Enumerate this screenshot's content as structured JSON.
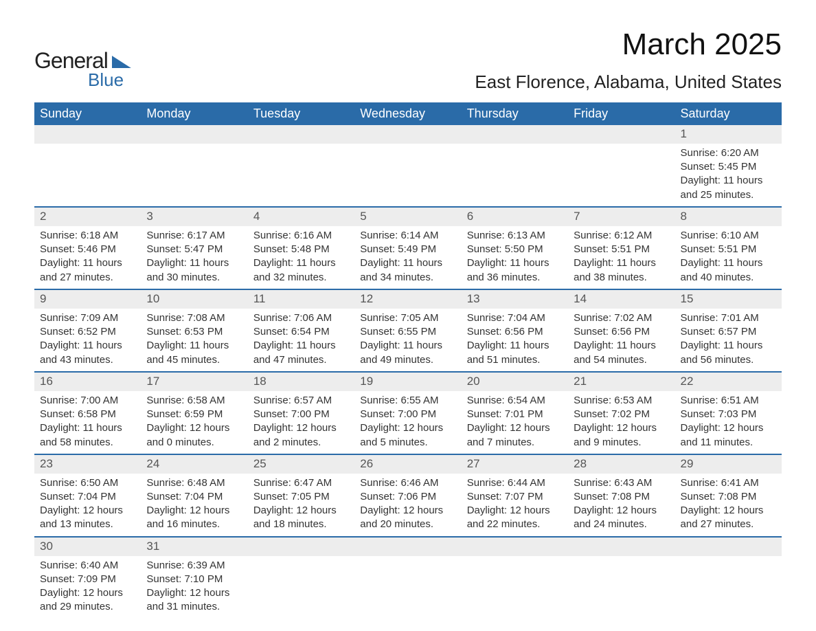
{
  "logo": {
    "text_general": "General",
    "text_blue": "Blue"
  },
  "header": {
    "month_title": "March 2025",
    "location": "East Florence, Alabama, United States"
  },
  "styling": {
    "header_bg_color": "#2a6ba8",
    "header_text_color": "#ffffff",
    "daynum_bg_color": "#ededed",
    "row_divider_color": "#2a6ba8",
    "body_text_color": "#333333",
    "month_title_fontsize": 44,
    "location_fontsize": 26,
    "weekday_fontsize": 18,
    "cell_fontsize": 15
  },
  "weekdays": [
    "Sunday",
    "Monday",
    "Tuesday",
    "Wednesday",
    "Thursday",
    "Friday",
    "Saturday"
  ],
  "weeks": [
    [
      {
        "day": "",
        "sunrise": "",
        "sunset": "",
        "daylight": ""
      },
      {
        "day": "",
        "sunrise": "",
        "sunset": "",
        "daylight": ""
      },
      {
        "day": "",
        "sunrise": "",
        "sunset": "",
        "daylight": ""
      },
      {
        "day": "",
        "sunrise": "",
        "sunset": "",
        "daylight": ""
      },
      {
        "day": "",
        "sunrise": "",
        "sunset": "",
        "daylight": ""
      },
      {
        "day": "",
        "sunrise": "",
        "sunset": "",
        "daylight": ""
      },
      {
        "day": "1",
        "sunrise": "Sunrise: 6:20 AM",
        "sunset": "Sunset: 5:45 PM",
        "daylight": "Daylight: 11 hours and 25 minutes."
      }
    ],
    [
      {
        "day": "2",
        "sunrise": "Sunrise: 6:18 AM",
        "sunset": "Sunset: 5:46 PM",
        "daylight": "Daylight: 11 hours and 27 minutes."
      },
      {
        "day": "3",
        "sunrise": "Sunrise: 6:17 AM",
        "sunset": "Sunset: 5:47 PM",
        "daylight": "Daylight: 11 hours and 30 minutes."
      },
      {
        "day": "4",
        "sunrise": "Sunrise: 6:16 AM",
        "sunset": "Sunset: 5:48 PM",
        "daylight": "Daylight: 11 hours and 32 minutes."
      },
      {
        "day": "5",
        "sunrise": "Sunrise: 6:14 AM",
        "sunset": "Sunset: 5:49 PM",
        "daylight": "Daylight: 11 hours and 34 minutes."
      },
      {
        "day": "6",
        "sunrise": "Sunrise: 6:13 AM",
        "sunset": "Sunset: 5:50 PM",
        "daylight": "Daylight: 11 hours and 36 minutes."
      },
      {
        "day": "7",
        "sunrise": "Sunrise: 6:12 AM",
        "sunset": "Sunset: 5:51 PM",
        "daylight": "Daylight: 11 hours and 38 minutes."
      },
      {
        "day": "8",
        "sunrise": "Sunrise: 6:10 AM",
        "sunset": "Sunset: 5:51 PM",
        "daylight": "Daylight: 11 hours and 40 minutes."
      }
    ],
    [
      {
        "day": "9",
        "sunrise": "Sunrise: 7:09 AM",
        "sunset": "Sunset: 6:52 PM",
        "daylight": "Daylight: 11 hours and 43 minutes."
      },
      {
        "day": "10",
        "sunrise": "Sunrise: 7:08 AM",
        "sunset": "Sunset: 6:53 PM",
        "daylight": "Daylight: 11 hours and 45 minutes."
      },
      {
        "day": "11",
        "sunrise": "Sunrise: 7:06 AM",
        "sunset": "Sunset: 6:54 PM",
        "daylight": "Daylight: 11 hours and 47 minutes."
      },
      {
        "day": "12",
        "sunrise": "Sunrise: 7:05 AM",
        "sunset": "Sunset: 6:55 PM",
        "daylight": "Daylight: 11 hours and 49 minutes."
      },
      {
        "day": "13",
        "sunrise": "Sunrise: 7:04 AM",
        "sunset": "Sunset: 6:56 PM",
        "daylight": "Daylight: 11 hours and 51 minutes."
      },
      {
        "day": "14",
        "sunrise": "Sunrise: 7:02 AM",
        "sunset": "Sunset: 6:56 PM",
        "daylight": "Daylight: 11 hours and 54 minutes."
      },
      {
        "day": "15",
        "sunrise": "Sunrise: 7:01 AM",
        "sunset": "Sunset: 6:57 PM",
        "daylight": "Daylight: 11 hours and 56 minutes."
      }
    ],
    [
      {
        "day": "16",
        "sunrise": "Sunrise: 7:00 AM",
        "sunset": "Sunset: 6:58 PM",
        "daylight": "Daylight: 11 hours and 58 minutes."
      },
      {
        "day": "17",
        "sunrise": "Sunrise: 6:58 AM",
        "sunset": "Sunset: 6:59 PM",
        "daylight": "Daylight: 12 hours and 0 minutes."
      },
      {
        "day": "18",
        "sunrise": "Sunrise: 6:57 AM",
        "sunset": "Sunset: 7:00 PM",
        "daylight": "Daylight: 12 hours and 2 minutes."
      },
      {
        "day": "19",
        "sunrise": "Sunrise: 6:55 AM",
        "sunset": "Sunset: 7:00 PM",
        "daylight": "Daylight: 12 hours and 5 minutes."
      },
      {
        "day": "20",
        "sunrise": "Sunrise: 6:54 AM",
        "sunset": "Sunset: 7:01 PM",
        "daylight": "Daylight: 12 hours and 7 minutes."
      },
      {
        "day": "21",
        "sunrise": "Sunrise: 6:53 AM",
        "sunset": "Sunset: 7:02 PM",
        "daylight": "Daylight: 12 hours and 9 minutes."
      },
      {
        "day": "22",
        "sunrise": "Sunrise: 6:51 AM",
        "sunset": "Sunset: 7:03 PM",
        "daylight": "Daylight: 12 hours and 11 minutes."
      }
    ],
    [
      {
        "day": "23",
        "sunrise": "Sunrise: 6:50 AM",
        "sunset": "Sunset: 7:04 PM",
        "daylight": "Daylight: 12 hours and 13 minutes."
      },
      {
        "day": "24",
        "sunrise": "Sunrise: 6:48 AM",
        "sunset": "Sunset: 7:04 PM",
        "daylight": "Daylight: 12 hours and 16 minutes."
      },
      {
        "day": "25",
        "sunrise": "Sunrise: 6:47 AM",
        "sunset": "Sunset: 7:05 PM",
        "daylight": "Daylight: 12 hours and 18 minutes."
      },
      {
        "day": "26",
        "sunrise": "Sunrise: 6:46 AM",
        "sunset": "Sunset: 7:06 PM",
        "daylight": "Daylight: 12 hours and 20 minutes."
      },
      {
        "day": "27",
        "sunrise": "Sunrise: 6:44 AM",
        "sunset": "Sunset: 7:07 PM",
        "daylight": "Daylight: 12 hours and 22 minutes."
      },
      {
        "day": "28",
        "sunrise": "Sunrise: 6:43 AM",
        "sunset": "Sunset: 7:08 PM",
        "daylight": "Daylight: 12 hours and 24 minutes."
      },
      {
        "day": "29",
        "sunrise": "Sunrise: 6:41 AM",
        "sunset": "Sunset: 7:08 PM",
        "daylight": "Daylight: 12 hours and 27 minutes."
      }
    ],
    [
      {
        "day": "30",
        "sunrise": "Sunrise: 6:40 AM",
        "sunset": "Sunset: 7:09 PM",
        "daylight": "Daylight: 12 hours and 29 minutes."
      },
      {
        "day": "31",
        "sunrise": "Sunrise: 6:39 AM",
        "sunset": "Sunset: 7:10 PM",
        "daylight": "Daylight: 12 hours and 31 minutes."
      },
      {
        "day": "",
        "sunrise": "",
        "sunset": "",
        "daylight": ""
      },
      {
        "day": "",
        "sunrise": "",
        "sunset": "",
        "daylight": ""
      },
      {
        "day": "",
        "sunrise": "",
        "sunset": "",
        "daylight": ""
      },
      {
        "day": "",
        "sunrise": "",
        "sunset": "",
        "daylight": ""
      },
      {
        "day": "",
        "sunrise": "",
        "sunset": "",
        "daylight": ""
      }
    ]
  ]
}
